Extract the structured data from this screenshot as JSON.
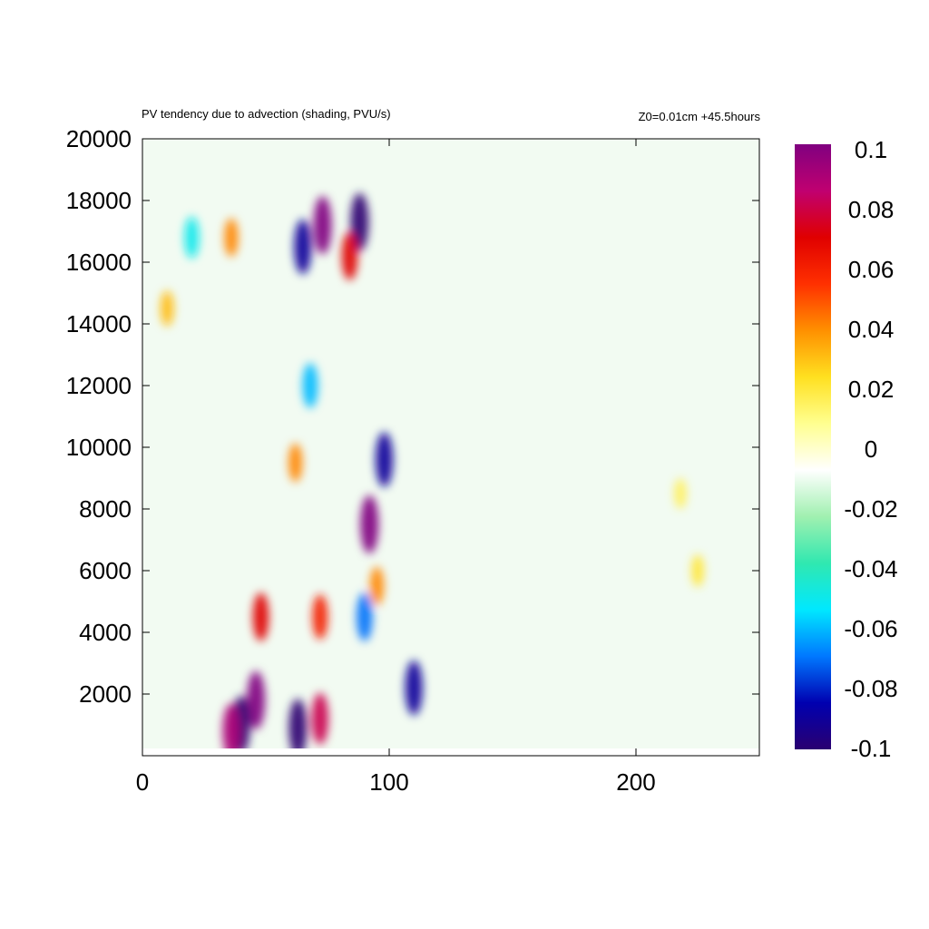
{
  "chart_data": {
    "type": "heatmap",
    "title": "PV tendency due to advection (shading, PVU/s)",
    "subtitle": "Z0=0.01cm   +45.5hours",
    "xlabel": "",
    "ylabel": "",
    "xlim": [
      0,
      250
    ],
    "ylim": [
      250,
      20000
    ],
    "x_ticks": [
      0,
      100,
      200
    ],
    "x_tick_labels": [
      "0",
      "100",
      "200"
    ],
    "y_ticks": [
      2000,
      4000,
      6000,
      8000,
      10000,
      12000,
      14000,
      16000,
      18000,
      20000
    ],
    "y_tick_labels": [
      "2000",
      "4000",
      "6000",
      "8000",
      "10000",
      "12000",
      "14000",
      "16000",
      "18000",
      "20000"
    ],
    "colorbar": {
      "range": [
        -0.1,
        0.1
      ],
      "ticks": [
        0.1,
        0.08,
        0.06,
        0.04,
        0.02,
        0,
        -0.02,
        -0.04,
        -0.06,
        -0.08,
        -0.1
      ],
      "tick_labels": [
        "0.1",
        "0.08",
        "0.06",
        "0.04",
        "0.02",
        "0",
        "-0.02",
        "-0.04",
        "-0.06",
        "-0.08",
        "-0.1"
      ],
      "colors": [
        "#2a0070",
        "#0000b0",
        "#0078ff",
        "#00e8ff",
        "#30e8b0",
        "#a0f0b0",
        "#ffffff",
        "#ffff90",
        "#ffe020",
        "#ff9000",
        "#ff3000",
        "#e00000",
        "#c00070",
        "#800080"
      ]
    },
    "features": [
      {
        "x": 73,
        "y": 17200,
        "value": 0.1
      },
      {
        "x": 88,
        "y": 17300,
        "value": -0.1
      },
      {
        "x": 65,
        "y": 16500,
        "value": -0.09
      },
      {
        "x": 84,
        "y": 16200,
        "value": 0.07
      },
      {
        "x": 36,
        "y": 16800,
        "value": 0.04
      },
      {
        "x": 20,
        "y": 16800,
        "value": -0.05
      },
      {
        "x": 10,
        "y": 14500,
        "value": 0.03
      },
      {
        "x": 68,
        "y": 12000,
        "value": -0.06
      },
      {
        "x": 62,
        "y": 9500,
        "value": 0.04
      },
      {
        "x": 98,
        "y": 9600,
        "value": -0.09
      },
      {
        "x": 92,
        "y": 7500,
        "value": 0.1
      },
      {
        "x": 95,
        "y": 5500,
        "value": 0.04
      },
      {
        "x": 48,
        "y": 4500,
        "value": 0.07
      },
      {
        "x": 72,
        "y": 4500,
        "value": 0.06
      },
      {
        "x": 90,
        "y": 4500,
        "value": -0.07
      },
      {
        "x": 110,
        "y": 2200,
        "value": -0.09
      },
      {
        "x": 46,
        "y": 1800,
        "value": 0.1
      },
      {
        "x": 40,
        "y": 1000,
        "value": -0.1
      },
      {
        "x": 36,
        "y": 800,
        "value": 0.09
      },
      {
        "x": 63,
        "y": 900,
        "value": -0.1
      },
      {
        "x": 72,
        "y": 1200,
        "value": 0.08
      },
      {
        "x": 225,
        "y": 6000,
        "value": 0.02
      },
      {
        "x": 218,
        "y": 8500,
        "value": 0.015
      }
    ]
  }
}
